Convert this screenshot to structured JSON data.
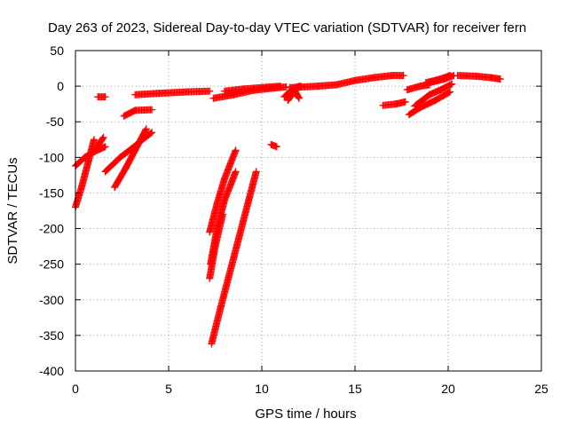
{
  "chart_data": {
    "type": "scatter",
    "title": "Day 263 of 2023, Sidereal Day-to-day VTEC variation (SDTVAR) for receiver fern",
    "xlabel": "GPS time / hours",
    "ylabel": "SDTVAR / TECUs",
    "xlim": [
      0,
      25
    ],
    "ylim": [
      -400,
      50
    ],
    "xticks": [
      0,
      5,
      10,
      15,
      20,
      25
    ],
    "yticks": [
      -400,
      -350,
      -300,
      -250,
      -200,
      -150,
      -100,
      -50,
      0,
      50
    ],
    "grid": true,
    "marker": "plus",
    "series_color": "#ff0000",
    "segments": [
      [
        [
          0.0,
          -170
        ],
        [
          0.35,
          -140
        ],
        [
          0.7,
          -105
        ],
        [
          1.0,
          -75
        ]
      ],
      [
        [
          0.0,
          -112
        ],
        [
          0.5,
          -100
        ],
        [
          1.0,
          -92
        ],
        [
          1.5,
          -72
        ]
      ],
      [
        [
          1.0,
          -92
        ],
        [
          1.6,
          -85
        ]
      ],
      [
        [
          1.2,
          -15
        ],
        [
          1.6,
          -15
        ]
      ],
      [
        [
          1.6,
          -120
        ],
        [
          2.4,
          -100
        ],
        [
          3.0,
          -88
        ],
        [
          3.6,
          -75
        ],
        [
          4.1,
          -65
        ]
      ],
      [
        [
          2.1,
          -142
        ],
        [
          2.7,
          -115
        ],
        [
          3.2,
          -90
        ],
        [
          3.8,
          -60
        ]
      ],
      [
        [
          2.6,
          -42
        ],
        [
          3.2,
          -34
        ],
        [
          4.1,
          -33
        ]
      ],
      [
        [
          3.2,
          -12
        ],
        [
          4.5,
          -10
        ],
        [
          6.0,
          -8
        ],
        [
          7.2,
          -7
        ]
      ],
      [
        [
          7.2,
          -205
        ],
        [
          7.6,
          -165
        ],
        [
          8.0,
          -130
        ],
        [
          8.6,
          -90
        ]
      ],
      [
        [
          7.25,
          -250
        ],
        [
          7.6,
          -200
        ],
        [
          8.0,
          -160
        ],
        [
          8.6,
          -120
        ]
      ],
      [
        [
          7.2,
          -270
        ],
        [
          7.5,
          -225
        ],
        [
          7.9,
          -180
        ]
      ],
      [
        [
          7.3,
          -362
        ],
        [
          7.8,
          -310
        ],
        [
          8.5,
          -240
        ],
        [
          9.3,
          -160
        ],
        [
          9.7,
          -120
        ]
      ],
      [
        [
          7.4,
          -17
        ],
        [
          8.5,
          -12
        ],
        [
          9.5,
          -6
        ],
        [
          10.5,
          -3
        ],
        [
          11.3,
          -1
        ]
      ],
      [
        [
          8.0,
          -7
        ],
        [
          9.0,
          -4
        ],
        [
          10.0,
          -2
        ],
        [
          11.0,
          0
        ]
      ],
      [
        [
          10.5,
          -82
        ],
        [
          10.8,
          -85
        ]
      ],
      [
        [
          11.2,
          -15
        ],
        [
          11.6,
          -5
        ],
        [
          12.0,
          0
        ]
      ],
      [
        [
          11.4,
          -20
        ],
        [
          11.8,
          -5
        ],
        [
          12.1,
          0
        ]
      ],
      [
        [
          12.0,
          -17
        ],
        [
          11.8,
          -8
        ]
      ],
      [
        [
          11.5,
          -2
        ],
        [
          13.0,
          0
        ],
        [
          14.0,
          2
        ],
        [
          15.0,
          8
        ],
        [
          16.0,
          12
        ],
        [
          17.0,
          15
        ],
        [
          17.6,
          15
        ]
      ],
      [
        [
          16.5,
          -27
        ],
        [
          17.2,
          -25
        ],
        [
          17.7,
          -22
        ]
      ],
      [
        [
          17.8,
          -5
        ],
        [
          18.5,
          0
        ],
        [
          19.0,
          2
        ]
      ],
      [
        [
          17.9,
          -40
        ],
        [
          18.5,
          -30
        ],
        [
          19.3,
          -20
        ],
        [
          20.1,
          -8
        ]
      ],
      [
        [
          18.2,
          -28
        ],
        [
          19.0,
          -12
        ],
        [
          19.6,
          -5
        ],
        [
          20.2,
          3
        ]
      ],
      [
        [
          18.8,
          5
        ],
        [
          19.3,
          8
        ],
        [
          19.8,
          12
        ],
        [
          20.1,
          15
        ]
      ],
      [
        [
          19.0,
          5
        ],
        [
          19.8,
          10
        ],
        [
          20.3,
          15
        ]
      ],
      [
        [
          20.5,
          15
        ],
        [
          21.5,
          14
        ],
        [
          22.3,
          12
        ],
        [
          22.8,
          10
        ]
      ]
    ]
  }
}
